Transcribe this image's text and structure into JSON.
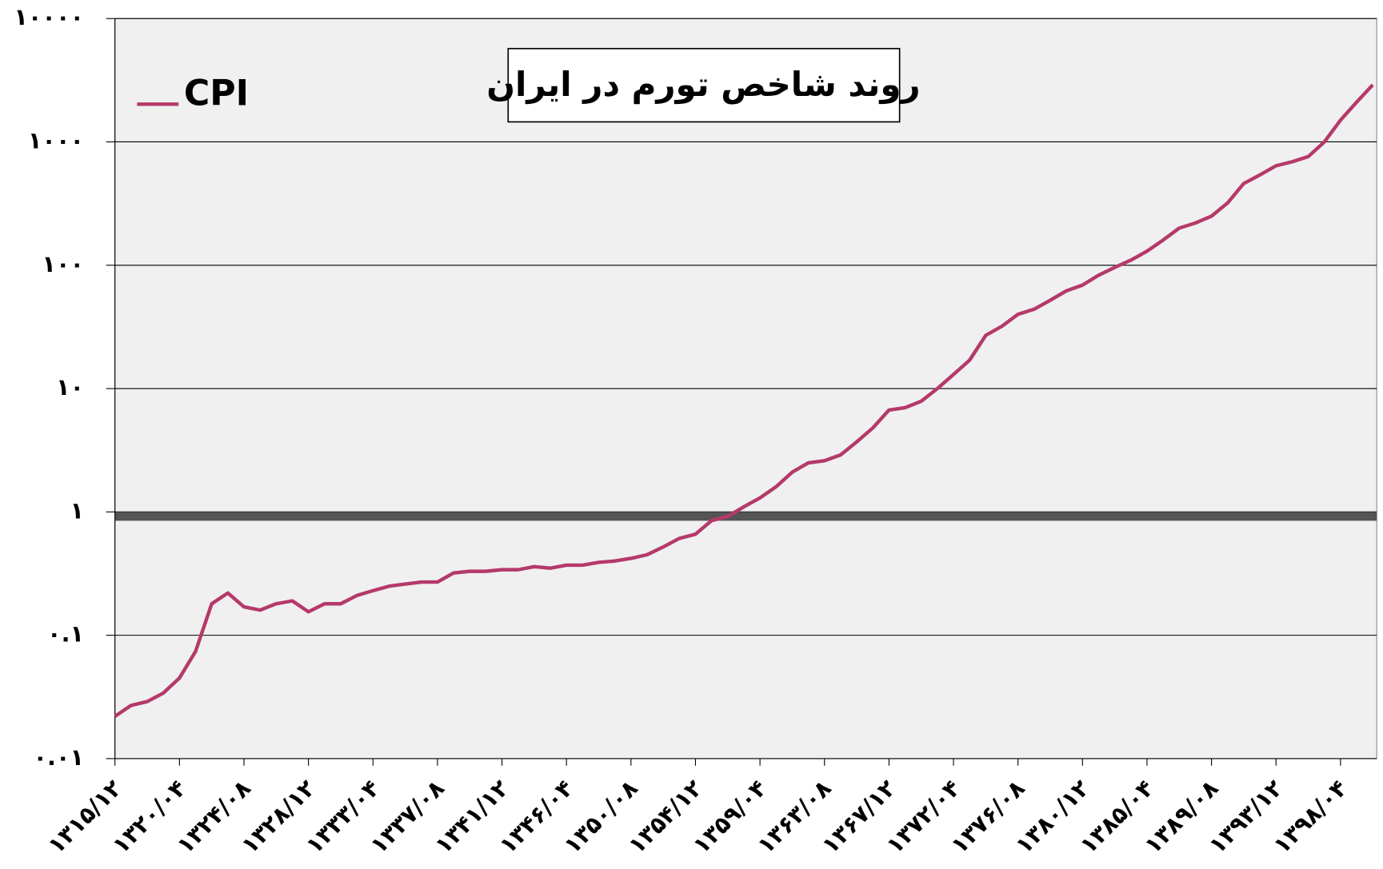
{
  "chart_data": {
    "type": "line",
    "title": "روند شاخص تورم در ایران",
    "log_scale": true,
    "grid": true,
    "legend": "upper left",
    "ylim": [
      0.01,
      10000
    ],
    "yticks": [
      {
        "value": 0.01,
        "label": "۰.۰۱"
      },
      {
        "value": 0.1,
        "label": "۰.۱"
      },
      {
        "value": 1,
        "label": "۱"
      },
      {
        "value": 10,
        "label": "۱۰"
      },
      {
        "value": 100,
        "label": "۱۰۰"
      },
      {
        "value": 1000,
        "label": "۱۰۰۰"
      },
      {
        "value": 10000,
        "label": "۱۰۰۰۰"
      }
    ],
    "categories": [
      "۱۳۱۵/۱۲",
      null,
      null,
      null,
      "۱۳۲۰/۰۴",
      null,
      null,
      null,
      "۱۳۲۴/۰۸",
      null,
      null,
      null,
      "۱۳۲۸/۱۲",
      null,
      null,
      null,
      "۱۳۳۳/۰۴",
      null,
      null,
      null,
      "۱۳۳۷/۰۸",
      null,
      null,
      null,
      "۱۳۴۱/۱۲",
      null,
      null,
      null,
      "۱۳۴۶/۰۴",
      null,
      null,
      null,
      "۱۳۵۰/۰۸",
      null,
      null,
      null,
      "۱۳۵۴/۱۲",
      null,
      null,
      null,
      "۱۳۵۹/۰۴",
      null,
      null,
      null,
      "۱۳۶۳/۰۸",
      null,
      null,
      null,
      "۱۳۶۷/۱۲",
      null,
      null,
      null,
      "۱۳۷۲/۰۴",
      null,
      null,
      null,
      "۱۳۷۶/۰۸",
      null,
      null,
      null,
      "۱۳۸۰/۱۲",
      null,
      null,
      null,
      "۱۳۸۵/۰۴",
      null,
      null,
      null,
      "۱۳۸۹/۰۸",
      null,
      null,
      null,
      "۱۳۹۳/۱۲",
      null,
      null,
      null,
      "۱۳۹۸/۰۴",
      null,
      null
    ],
    "series": [
      {
        "name": "CPI",
        "color": "#b5396a",
        "values": [
          0.022,
          0.027,
          0.029,
          0.034,
          0.045,
          0.074,
          0.18,
          0.22,
          0.17,
          0.16,
          0.18,
          0.19,
          0.155,
          0.18,
          0.18,
          0.21,
          0.23,
          0.25,
          0.26,
          0.27,
          0.27,
          0.32,
          0.33,
          0.33,
          0.34,
          0.34,
          0.36,
          0.35,
          0.37,
          0.37,
          0.39,
          0.4,
          0.42,
          0.45,
          0.52,
          0.61,
          0.66,
          0.85,
          0.92,
          1.1,
          1.3,
          1.6,
          2.1,
          2.5,
          2.6,
          2.9,
          3.7,
          4.8,
          6.7,
          7.0,
          7.9,
          10,
          13,
          17,
          27,
          32,
          40,
          44,
          52,
          62,
          69,
          83,
          96,
          110,
          130,
          160,
          200,
          220,
          250,
          320,
          460,
          540,
          640,
          690,
          760,
          1000,
          1500,
          2100,
          2900
        ]
      }
    ]
  }
}
